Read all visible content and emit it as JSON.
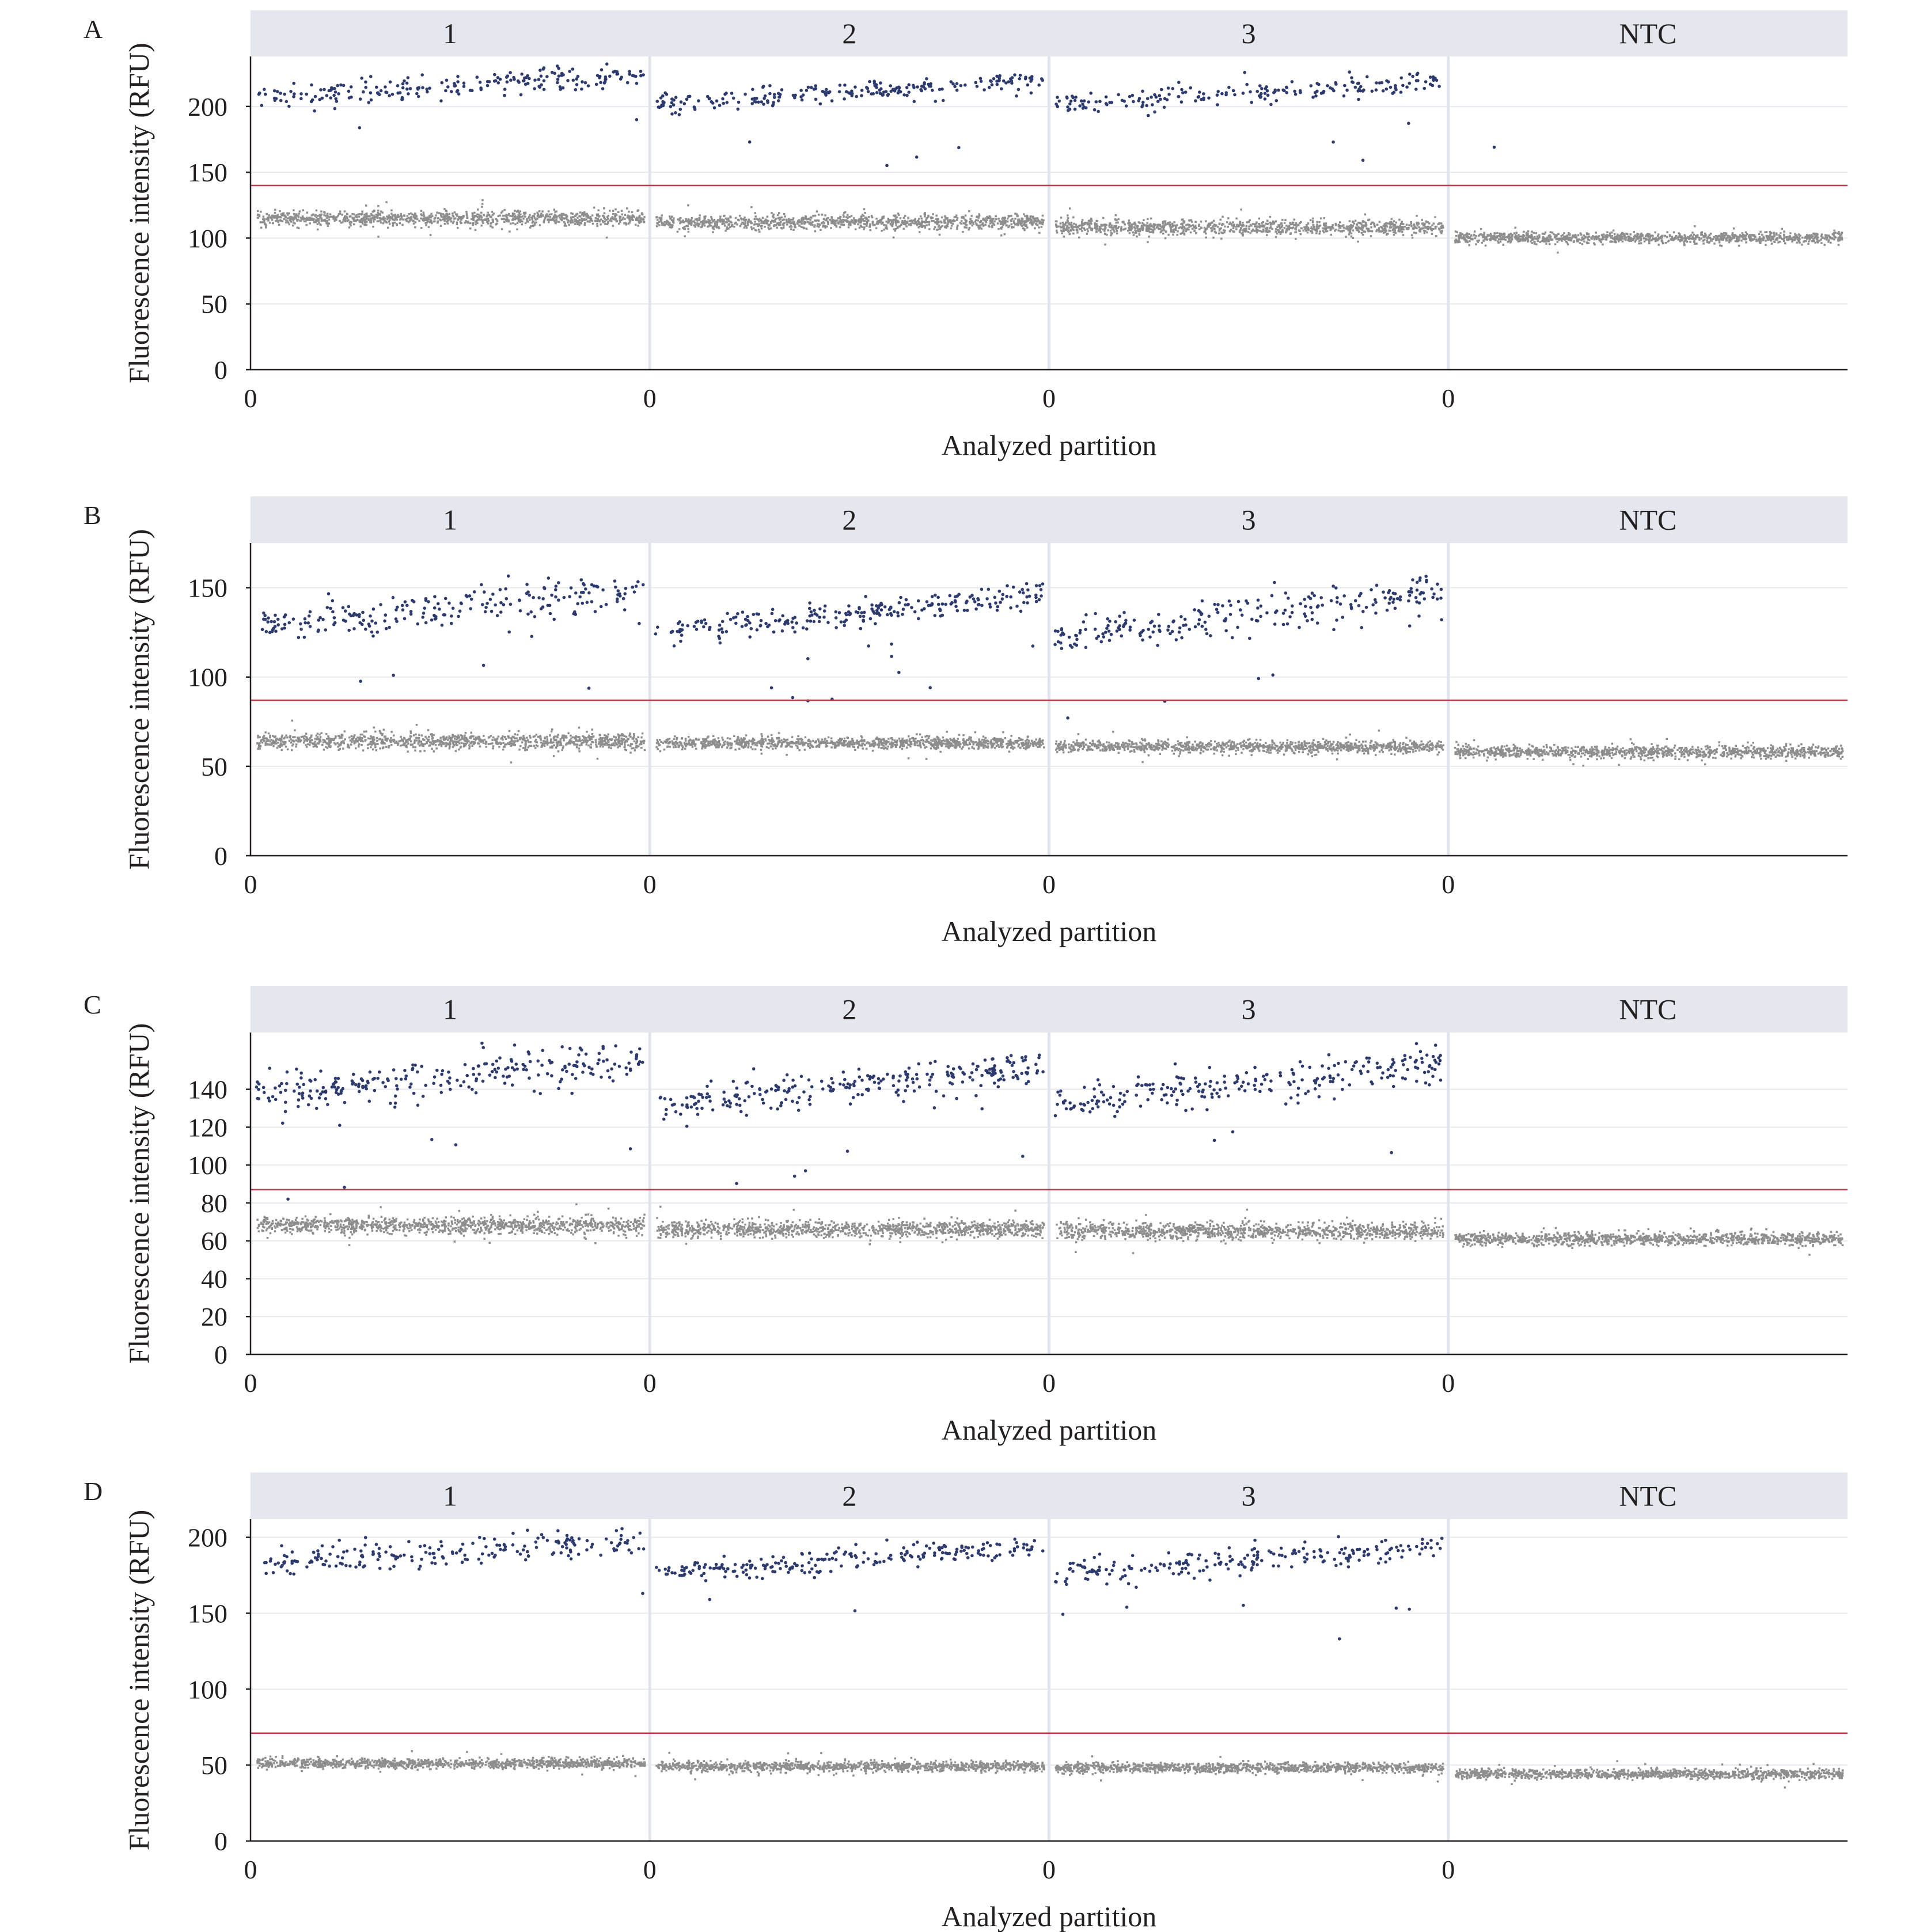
{
  "chart_data": [
    {
      "type": "scatter",
      "panel_label": "A",
      "xlabel": "Analyzed partition",
      "ylabel": "Fluorescence intensity (RFU)",
      "ylim": [
        0,
        238
      ],
      "yticks": [
        0,
        50,
        100,
        150,
        200
      ],
      "threshold": 140,
      "facets": [
        {
          "label": "1",
          "x_tick": "0",
          "positive": {
            "count": 220,
            "start": 207,
            "end": 224,
            "spread": 8
          },
          "negative": {
            "level": 115,
            "spread": 5
          }
        },
        {
          "label": "2",
          "x_tick": "0",
          "positive": {
            "count": 230,
            "start": 202,
            "end": 220,
            "spread": 6
          },
          "negative": {
            "level": 112,
            "spread": 5
          }
        },
        {
          "label": "3",
          "x_tick": "0",
          "positive": {
            "count": 200,
            "start": 202,
            "end": 220,
            "spread": 7
          },
          "negative": {
            "level": 108,
            "spread": 5
          }
        },
        {
          "label": "NTC",
          "x_tick": "0",
          "positive": {
            "count": 1,
            "start": 169,
            "end": 169,
            "spread": 0
          },
          "negative": {
            "level": 100,
            "spread": 4
          }
        }
      ]
    },
    {
      "type": "scatter",
      "panel_label": "B",
      "xlabel": "Analyzed partition",
      "ylabel": "Fluorescence intensity (RFU)",
      "ylim": [
        0,
        175
      ],
      "yticks": [
        0,
        50,
        100,
        150
      ],
      "threshold": 87,
      "facets": [
        {
          "label": "1",
          "x_tick": "0",
          "positive": {
            "count": 230,
            "start": 128,
            "end": 150,
            "spread": 9
          },
          "negative": {
            "level": 64,
            "spread": 4
          }
        },
        {
          "label": "2",
          "x_tick": "0",
          "positive": {
            "count": 260,
            "start": 125,
            "end": 146,
            "spread": 6
          },
          "negative": {
            "level": 63,
            "spread": 3
          }
        },
        {
          "label": "3",
          "x_tick": "0",
          "positive": {
            "count": 240,
            "start": 122,
            "end": 148,
            "spread": 8
          },
          "negative": {
            "level": 61,
            "spread": 3
          }
        },
        {
          "label": "NTC",
          "x_tick": "0",
          "positive": {
            "count": 0,
            "start": 0,
            "end": 0,
            "spread": 0
          },
          "negative": {
            "level": 58,
            "spread": 3
          }
        }
      ]
    },
    {
      "type": "scatter",
      "panel_label": "C",
      "xlabel": "Analyzed partition",
      "ylabel": "Fluorescence intensity (RFU)",
      "ylim": [
        0,
        170
      ],
      "yticks": [
        0,
        20,
        40,
        60,
        80,
        100,
        120,
        140
      ],
      "threshold": 87,
      "facets": [
        {
          "label": "1",
          "x_tick": "0",
          "positive": {
            "count": 260,
            "start": 138,
            "end": 155,
            "spread": 9
          },
          "negative": {
            "level": 68,
            "spread": 4
          }
        },
        {
          "label": "2",
          "x_tick": "0",
          "positive": {
            "count": 270,
            "start": 132,
            "end": 152,
            "spread": 7
          },
          "negative": {
            "level": 66,
            "spread": 4
          }
        },
        {
          "label": "3",
          "x_tick": "0",
          "positive": {
            "count": 250,
            "start": 132,
            "end": 154,
            "spread": 8
          },
          "negative": {
            "level": 65,
            "spread": 4
          }
        },
        {
          "label": "NTC",
          "x_tick": "0",
          "positive": {
            "count": 0,
            "start": 0,
            "end": 0,
            "spread": 0
          },
          "negative": {
            "level": 61,
            "spread": 3
          }
        }
      ]
    },
    {
      "type": "scatter",
      "panel_label": "D",
      "xlabel": "Analyzed partition",
      "ylabel": "Fluorescence intensity (RFU)",
      "ylim": [
        0,
        212
      ],
      "yticks": [
        0,
        50,
        100,
        150,
        200
      ],
      "threshold": 71,
      "facets": [
        {
          "label": "1",
          "x_tick": "0",
          "positive": {
            "count": 210,
            "start": 183,
            "end": 198,
            "spread": 8
          },
          "negative": {
            "level": 51,
            "spread": 3
          }
        },
        {
          "label": "2",
          "x_tick": "0",
          "positive": {
            "count": 230,
            "start": 176,
            "end": 195,
            "spread": 6
          },
          "negative": {
            "level": 49,
            "spread": 3
          }
        },
        {
          "label": "3",
          "x_tick": "0",
          "positive": {
            "count": 220,
            "start": 176,
            "end": 194,
            "spread": 7
          },
          "negative": {
            "level": 48,
            "spread": 3
          }
        },
        {
          "label": "NTC",
          "x_tick": "0",
          "positive": {
            "count": 0,
            "start": 0,
            "end": 0,
            "spread": 0
          },
          "negative": {
            "level": 44,
            "spread": 3
          }
        }
      ]
    }
  ],
  "colors": {
    "positive": "#2d3a6e",
    "negative": "#8e8e8e",
    "threshold": "#c0394b",
    "strip": "#e4e8ee",
    "text": "#231f20"
  }
}
